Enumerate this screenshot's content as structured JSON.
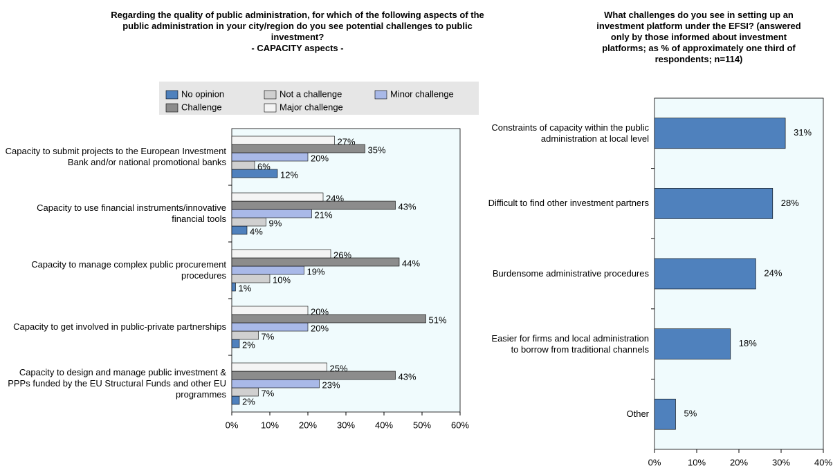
{
  "chart_data": [
    {
      "type": "hbar_grouped",
      "title": "Regarding the quality of public administration, for which of the following aspects of the public administration in your city/region do you see potential challenges to public investment?",
      "subtitle": "- CAPACITY aspects -",
      "categories": [
        "Capacity to submit projects to the European Investment Bank and/or national promotional banks",
        "Capacity to use financial instruments/innovative financial tools",
        "Capacity to manage complex public procurement procedures",
        "Capacity to get involved in public-private partnerships",
        "Capacity to design and manage public investment & PPPs funded by the EU Structural Funds and other EU programmes"
      ],
      "series": [
        {
          "name": "No opinion",
          "color": "#4f81bd",
          "values": [
            12,
            4,
            1,
            2,
            2
          ],
          "value_labels": [
            "12%",
            "4%",
            "1%",
            "2%",
            "2%"
          ]
        },
        {
          "name": "Not a challenge",
          "color": "#d0d0d0",
          "values": [
            6,
            9,
            10,
            7,
            7
          ],
          "value_labels": [
            "6%",
            "9%",
            "10%",
            "7%",
            "7%"
          ]
        },
        {
          "name": "Minor challenge",
          "color": "#a9b9e8",
          "values": [
            20,
            21,
            19,
            20,
            23
          ],
          "value_labels": [
            "20%",
            "21%",
            "19%",
            "20%",
            "23%"
          ]
        },
        {
          "name": "Challenge",
          "color": "#8c8c8c",
          "values": [
            35,
            43,
            44,
            51,
            43
          ],
          "value_labels": [
            "35%",
            "43%",
            "44%",
            "51%",
            "43%"
          ]
        },
        {
          "name": "Major challenge",
          "color": "#f4f4f4",
          "values": [
            27,
            24,
            26,
            20,
            25
          ],
          "value_labels": [
            "27%",
            "24%",
            "26%",
            "20%",
            "25%"
          ]
        }
      ],
      "xlim": [
        0,
        60
      ],
      "xticks": [
        {
          "value": 0,
          "label": "0%"
        },
        {
          "value": 10,
          "label": "10%"
        },
        {
          "value": 20,
          "label": "20%"
        },
        {
          "value": 30,
          "label": "30%"
        },
        {
          "value": 40,
          "label": "40%"
        },
        {
          "value": 50,
          "label": "50%"
        },
        {
          "value": 60,
          "label": "60%"
        }
      ],
      "grid": false
    },
    {
      "type": "hbar",
      "title": "What challenges do you see in setting up an investment platform under the EFSI? (answered only by those informed about investment platforms; as % of approximately one third of respondents; n=114)",
      "categories": [
        "Constraints of capacity within the public administration at local level",
        "Difficult to find other investment partners",
        "Burdensome administrative procedures",
        "Easier for firms and local administration to borrow from traditional channels",
        "Other"
      ],
      "values": [
        31,
        28,
        24,
        18,
        5
      ],
      "value_labels": [
        "31%",
        "28%",
        "24%",
        "18%",
        "5%"
      ],
      "color": "#4f81bd",
      "xlim": [
        0,
        40
      ],
      "xticks": [
        {
          "value": 0,
          "label": "0%"
        },
        {
          "value": 10,
          "label": "10%"
        },
        {
          "value": 20,
          "label": "20%"
        },
        {
          "value": 30,
          "label": "30%"
        },
        {
          "value": 40,
          "label": "40%"
        }
      ],
      "grid": false
    }
  ]
}
